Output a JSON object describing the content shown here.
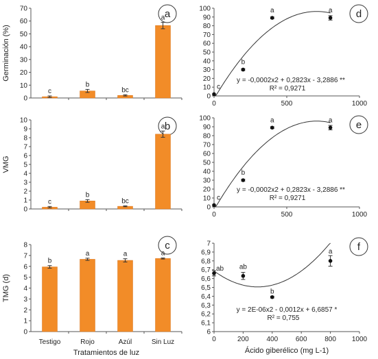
{
  "chart_data": [
    {
      "panel": "a",
      "type": "bar",
      "ylabel": "Germinación (%)",
      "categories": [
        "Testigo",
        "Rojo",
        "Azúl",
        "Sin Luz"
      ],
      "values": [
        1,
        5.5,
        2,
        56.5
      ],
      "errors": [
        0.6,
        1.2,
        0.5,
        2.5
      ],
      "letters": [
        "c",
        "b",
        "bc",
        "a"
      ],
      "ylim": [
        0,
        70
      ],
      "yticks": [
        0,
        10,
        20,
        30,
        40,
        50,
        60,
        70
      ],
      "ytick_labels": [
        "0",
        "10",
        "20",
        "30",
        "40",
        "50",
        "60",
        "70"
      ],
      "color": "#F28C28"
    },
    {
      "panel": "b",
      "type": "bar",
      "ylabel": "VMG",
      "categories": [
        "Testigo",
        "Rojo",
        "Azúl",
        "Sin Luz"
      ],
      "values": [
        0.2,
        0.9,
        0.3,
        8.4
      ],
      "errors": [
        0.08,
        0.15,
        0.05,
        0.35
      ],
      "letters": [
        "c",
        "b",
        "bc",
        "a"
      ],
      "ylim": [
        0,
        10
      ],
      "yticks": [
        0,
        1,
        2,
        3,
        4,
        5,
        6,
        7,
        8,
        9,
        10
      ],
      "ytick_labels": [
        "0",
        "1",
        "2",
        "3",
        "4",
        "5",
        "6",
        "7",
        "8",
        "9",
        "10"
      ],
      "color": "#F28C28"
    },
    {
      "panel": "c",
      "type": "bar",
      "ylabel": "TMG (d)",
      "xlabel": "Tratamientos de luz",
      "categories": [
        "Testigo",
        "Rojo",
        "Azúl",
        "Sin Luz"
      ],
      "values": [
        5.95,
        6.65,
        6.55,
        6.72
      ],
      "errors": [
        0.12,
        0.1,
        0.15,
        0.05
      ],
      "letters": [
        "b",
        "a",
        "a",
        "a"
      ],
      "ylim": [
        0,
        8
      ],
      "yticks": [
        0,
        1,
        2,
        3,
        4,
        5,
        6,
        7,
        8
      ],
      "ytick_labels": [
        "0",
        "1",
        "2",
        "3",
        "4",
        "5",
        "6",
        "7",
        "8"
      ],
      "color": "#F28C28"
    },
    {
      "panel": "d",
      "type": "scatter",
      "x": [
        0,
        200,
        400,
        800
      ],
      "y": [
        2,
        30,
        89,
        89
      ],
      "errors": [
        0,
        1,
        1,
        2.5
      ],
      "letters": [
        "c",
        "b",
        "a",
        "a"
      ],
      "fit": {
        "a": -0.0002,
        "b": 0.2823,
        "c": -3.2886
      },
      "equation": "y = -0,0002x2 + 0,2823x - 3,2886 **",
      "r2": "R² = 0,9271",
      "xlim": [
        0,
        1000
      ],
      "xticks": [
        0,
        500,
        1000
      ],
      "xtick_labels": [
        "0",
        "500",
        "1000"
      ],
      "ylim": [
        0,
        100
      ],
      "yticks": [
        0,
        10,
        20,
        30,
        40,
        50,
        60,
        70,
        80,
        90,
        100
      ],
      "ytick_labels": [
        "0",
        "10",
        "20",
        "30",
        "40",
        "50",
        "60",
        "70",
        "80",
        "90",
        "100"
      ]
    },
    {
      "panel": "e",
      "type": "scatter",
      "x": [
        0,
        200,
        400,
        800
      ],
      "y": [
        2,
        30,
        89,
        89
      ],
      "errors": [
        0,
        1,
        1,
        2.5
      ],
      "letters": [
        "c",
        "b",
        "a",
        "a"
      ],
      "fit": {
        "a": -0.0002,
        "b": 0.2823,
        "c": -3.2886
      },
      "equation": "y = -0,0002x2 + 0,2823x - 3,2886 **",
      "r2": "R² = 0,9271",
      "xlim": [
        0,
        1000
      ],
      "xticks": [
        0,
        500,
        1000
      ],
      "xtick_labels": [
        "0",
        "500",
        "1000"
      ],
      "ylim": [
        0,
        100
      ],
      "yticks": [
        0,
        10,
        20,
        30,
        40,
        50,
        60,
        70,
        80,
        90,
        100
      ],
      "ytick_labels": [
        "0",
        "10",
        "20",
        "30",
        "40",
        "50",
        "60",
        "70",
        "80",
        "90",
        "100"
      ]
    },
    {
      "panel": "f",
      "type": "scatter",
      "xlabel": "Ácido giberélico  (mg L-1)",
      "x": [
        0,
        200,
        400,
        800
      ],
      "y": [
        6.66,
        6.63,
        6.39,
        6.8
      ],
      "errors": [
        0.03,
        0.04,
        0.01,
        0.06
      ],
      "letters": [
        "ab",
        "ab",
        "b",
        "a"
      ],
      "fit": {
        "a": 2e-06,
        "b": -0.0012,
        "c": 6.6857
      },
      "equation": "y = 2E-06x2 - 0,0012x + 6,6857 *",
      "r2": "R² = 0,755",
      "xlim": [
        0,
        1000
      ],
      "xticks": [
        0,
        200,
        400,
        600,
        800,
        1000
      ],
      "xtick_labels": [
        "0",
        "200",
        "400",
        "600",
        "800",
        "1000"
      ],
      "ylim": [
        6,
        7
      ],
      "yticks": [
        6,
        6.1,
        6.2,
        6.3,
        6.4,
        6.5,
        6.6,
        6.7,
        6.8,
        6.9,
        7
      ],
      "ytick_labels": [
        "6",
        "6,1",
        "6,2",
        "6,3",
        "6,4",
        "6,5",
        "6,6",
        "6,7",
        "6,8",
        "6,9",
        "7"
      ]
    }
  ]
}
